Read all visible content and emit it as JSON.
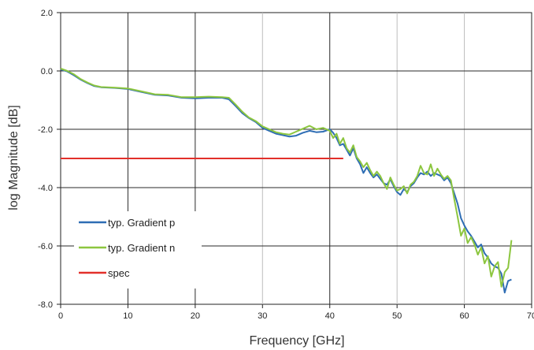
{
  "chart_data": {
    "type": "line",
    "title": "",
    "xlabel": "Frequency [GHz]",
    "ylabel": "log Magnitude [dB]",
    "xlim": [
      0,
      70
    ],
    "ylim": [
      -8,
      2
    ],
    "x_ticks": [
      0,
      10,
      20,
      30,
      40,
      50,
      60,
      70
    ],
    "x_tick_labels": [
      "0",
      "10",
      "20",
      "30",
      "40",
      "50",
      "60",
      "70"
    ],
    "y_ticks": [
      2,
      0,
      -2,
      -4,
      -6,
      -8
    ],
    "y_tick_labels": [
      "2.0",
      "0.0",
      "-2.0",
      "-4.0",
      "-6.0",
      "-8.0"
    ],
    "grid": true,
    "legend_position": "bottom-left",
    "series": [
      {
        "name": "typ. Gradient p",
        "color": "#2e6db4",
        "x": [
          0,
          1,
          2,
          3,
          4,
          5,
          6,
          8,
          10,
          12,
          14,
          16,
          18,
          20,
          22,
          24,
          25,
          26,
          27,
          28,
          29,
          30,
          31,
          32,
          33,
          34,
          35,
          36,
          37,
          38,
          39,
          40,
          40.5,
          41,
          41.5,
          42,
          42.5,
          43,
          43.5,
          44,
          44.5,
          45,
          45.5,
          46,
          46.5,
          47,
          47.5,
          48,
          48.5,
          49,
          49.5,
          50,
          50.5,
          51,
          51.5,
          52,
          52.5,
          53,
          53.5,
          54,
          54.5,
          55,
          55.5,
          56,
          56.5,
          57,
          57.5,
          58,
          58.5,
          59,
          59.5,
          60,
          60.5,
          61,
          61.5,
          62,
          62.5,
          63,
          63.5,
          64,
          64.5,
          65,
          65.5,
          66,
          66.5,
          67
        ],
        "y": [
          0.05,
          -0.02,
          -0.15,
          -0.3,
          -0.42,
          -0.52,
          -0.56,
          -0.58,
          -0.62,
          -0.72,
          -0.82,
          -0.84,
          -0.92,
          -0.94,
          -0.92,
          -0.92,
          -0.97,
          -1.2,
          -1.45,
          -1.62,
          -1.75,
          -1.95,
          -2.05,
          -2.15,
          -2.2,
          -2.25,
          -2.22,
          -2.12,
          -2.05,
          -2.1,
          -2.08,
          -2.0,
          -2.12,
          -2.3,
          -2.55,
          -2.5,
          -2.7,
          -2.9,
          -2.65,
          -3.0,
          -3.2,
          -3.5,
          -3.3,
          -3.5,
          -3.65,
          -3.55,
          -3.7,
          -3.85,
          -3.9,
          -3.72,
          -3.95,
          -4.15,
          -4.25,
          -4.05,
          -4.15,
          -3.95,
          -3.85,
          -3.65,
          -3.5,
          -3.55,
          -3.45,
          -3.6,
          -3.5,
          -3.55,
          -3.6,
          -3.75,
          -3.65,
          -3.85,
          -4.2,
          -4.55,
          -5.05,
          -5.3,
          -5.5,
          -5.65,
          -5.85,
          -6.05,
          -5.95,
          -6.25,
          -6.4,
          -6.6,
          -6.7,
          -6.75,
          -6.95,
          -7.6,
          -7.2,
          -7.15
        ]
      },
      {
        "name": "typ. Gradient  n",
        "color": "#8cc63f",
        "x": [
          0,
          1,
          2,
          3,
          4,
          5,
          6,
          8,
          10,
          12,
          14,
          16,
          18,
          20,
          22,
          24,
          25,
          26,
          27,
          28,
          29,
          30,
          31,
          32,
          33,
          34,
          35,
          36,
          37,
          38,
          39,
          40,
          40.5,
          41,
          41.5,
          42,
          42.5,
          43,
          43.5,
          44,
          44.5,
          45,
          45.5,
          46,
          46.5,
          47,
          47.5,
          48,
          48.5,
          49,
          49.5,
          50,
          50.5,
          51,
          51.5,
          52,
          52.5,
          53,
          53.5,
          54,
          54.5,
          55,
          55.5,
          56,
          56.5,
          57,
          57.5,
          58,
          58.5,
          59,
          59.5,
          60,
          60.5,
          61,
          61.5,
          62,
          62.5,
          63,
          63.5,
          64,
          64.5,
          65,
          65.5,
          66,
          66.5,
          67
        ],
        "y": [
          0.08,
          0.0,
          -0.12,
          -0.28,
          -0.4,
          -0.5,
          -0.55,
          -0.57,
          -0.6,
          -0.7,
          -0.8,
          -0.82,
          -0.9,
          -0.9,
          -0.88,
          -0.9,
          -0.92,
          -1.15,
          -1.4,
          -1.6,
          -1.72,
          -1.9,
          -2.0,
          -2.1,
          -2.15,
          -2.18,
          -2.08,
          -1.98,
          -1.88,
          -2.0,
          -1.95,
          -2.05,
          -2.3,
          -2.15,
          -2.5,
          -2.3,
          -2.65,
          -2.8,
          -2.55,
          -2.95,
          -3.1,
          -3.3,
          -3.15,
          -3.4,
          -3.6,
          -3.45,
          -3.6,
          -3.85,
          -4.05,
          -3.65,
          -3.9,
          -4.1,
          -4.05,
          -3.95,
          -4.2,
          -3.9,
          -3.8,
          -3.6,
          -3.25,
          -3.5,
          -3.55,
          -3.2,
          -3.6,
          -3.35,
          -3.55,
          -3.7,
          -3.6,
          -3.75,
          -4.4,
          -5.0,
          -5.65,
          -5.4,
          -5.9,
          -5.7,
          -5.95,
          -6.3,
          -6.05,
          -6.6,
          -6.35,
          -7.05,
          -6.7,
          -6.55,
          -7.4,
          -6.9,
          -6.75,
          -5.8
        ]
      },
      {
        "name": "spec",
        "color": "#e2302a",
        "x": [
          0,
          42
        ],
        "y": [
          -3.0,
          -3.0
        ]
      }
    ]
  }
}
